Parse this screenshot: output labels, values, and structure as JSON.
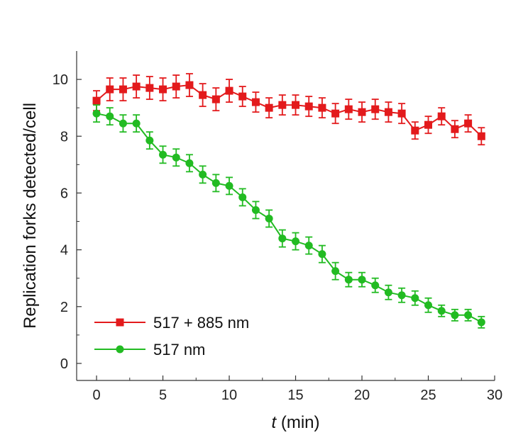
{
  "chart_data": {
    "type": "line",
    "xlabel_var": "t",
    "xlabel_unit": " (min)",
    "ylabel": "Replication forks detected/cell",
    "xlim": [
      -1.5,
      30
    ],
    "ylim": [
      -0.6,
      11
    ],
    "xticks": [
      0,
      5,
      10,
      15,
      20,
      25,
      30
    ],
    "yticks": [
      0,
      2,
      4,
      6,
      8,
      10
    ],
    "grid": false,
    "legend_position": "bottom-left",
    "series": [
      {
        "name": "517 + 885 nm",
        "color": "#e31a1c",
        "marker": "square",
        "x": [
          0,
          1,
          2,
          3,
          4,
          5,
          6,
          7,
          8,
          9,
          10,
          11,
          12,
          13,
          14,
          15,
          16,
          17,
          18,
          19,
          20,
          21,
          22,
          23,
          24,
          25,
          26,
          27,
          28,
          29
        ],
        "y": [
          9.25,
          9.65,
          9.65,
          9.75,
          9.7,
          9.65,
          9.75,
          9.8,
          9.45,
          9.3,
          9.6,
          9.4,
          9.2,
          9.0,
          9.1,
          9.1,
          9.05,
          9.0,
          8.8,
          8.95,
          8.85,
          8.95,
          8.85,
          8.8,
          8.2,
          8.4,
          8.7,
          8.25,
          8.45,
          8.0
        ],
        "error": [
          0.35,
          0.4,
          0.4,
          0.4,
          0.4,
          0.4,
          0.4,
          0.4,
          0.4,
          0.4,
          0.4,
          0.35,
          0.35,
          0.35,
          0.35,
          0.35,
          0.35,
          0.35,
          0.35,
          0.35,
          0.35,
          0.35,
          0.35,
          0.35,
          0.3,
          0.3,
          0.3,
          0.3,
          0.3,
          0.3
        ]
      },
      {
        "name": "517 nm",
        "color": "#22bb22",
        "marker": "circle",
        "x": [
          0,
          1,
          2,
          3,
          4,
          5,
          6,
          7,
          8,
          9,
          10,
          11,
          12,
          13,
          14,
          15,
          16,
          17,
          18,
          19,
          20,
          21,
          22,
          23,
          24,
          25,
          26,
          27,
          28,
          29
        ],
        "y": [
          8.8,
          8.7,
          8.45,
          8.45,
          7.85,
          7.35,
          7.25,
          7.05,
          6.65,
          6.35,
          6.25,
          5.85,
          5.4,
          5.1,
          4.4,
          4.3,
          4.15,
          3.85,
          3.25,
          2.95,
          2.95,
          2.75,
          2.5,
          2.4,
          2.3,
          2.05,
          1.85,
          1.7,
          1.7,
          1.45
        ],
        "error": [
          0.3,
          0.3,
          0.3,
          0.3,
          0.3,
          0.3,
          0.3,
          0.3,
          0.3,
          0.3,
          0.3,
          0.3,
          0.3,
          0.3,
          0.3,
          0.3,
          0.3,
          0.3,
          0.3,
          0.25,
          0.25,
          0.25,
          0.25,
          0.25,
          0.25,
          0.25,
          0.2,
          0.2,
          0.2,
          0.2
        ]
      }
    ]
  }
}
